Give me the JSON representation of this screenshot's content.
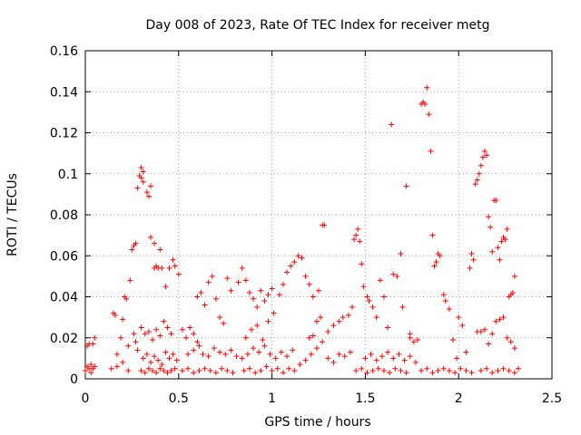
{
  "chart_data": {
    "type": "scatter",
    "title": "Day 008 of 2023, Rate Of TEC Index for receiver metg",
    "xlabel": "GPS time / hours",
    "ylabel": "ROTI / TECUs",
    "xlim": [
      0,
      2.5
    ],
    "ylim": [
      0,
      0.16
    ],
    "xticks": [
      0,
      0.5,
      1,
      1.5,
      2,
      2.5
    ],
    "xtick_labels": [
      "0",
      "0.5",
      "1",
      "1.5",
      "2",
      "2.5"
    ],
    "yticks": [
      0,
      0.02,
      0.04,
      0.06,
      0.08,
      0.1,
      0.12,
      0.14,
      0.16
    ],
    "ytick_labels": [
      "0",
      "0.02",
      "0.04",
      "0.06",
      "0.08",
      "0.1",
      "0.12",
      "0.14",
      "0.16"
    ],
    "grid": true,
    "marker": "+",
    "color": "#ff0000",
    "series": [
      {
        "name": "ROTI",
        "points": [
          [
            0.0,
            0.004
          ],
          [
            0.01,
            0.006
          ],
          [
            0.01,
            0.016
          ],
          [
            0.02,
            0.005
          ],
          [
            0.02,
            0.017
          ],
          [
            0.03,
            0.003
          ],
          [
            0.03,
            0.007
          ],
          [
            0.04,
            0.005
          ],
          [
            0.04,
            0.017
          ],
          [
            0.05,
            0.006
          ],
          [
            0.05,
            0.02
          ],
          [
            0.14,
            0.005
          ],
          [
            0.15,
            0.032
          ],
          [
            0.16,
            0.031
          ],
          [
            0.17,
            0.012
          ],
          [
            0.17,
            0.006
          ],
          [
            0.19,
            0.02
          ],
          [
            0.2,
            0.029
          ],
          [
            0.2,
            0.008
          ],
          [
            0.21,
            0.04
          ],
          [
            0.22,
            0.039
          ],
          [
            0.23,
            0.016
          ],
          [
            0.23,
            0.004
          ],
          [
            0.24,
            0.048
          ],
          [
            0.25,
            0.063
          ],
          [
            0.26,
            0.065
          ],
          [
            0.27,
            0.066
          ],
          [
            0.27,
            0.018
          ],
          [
            0.28,
            0.093
          ],
          [
            0.29,
            0.099
          ],
          [
            0.3,
            0.103
          ],
          [
            0.3,
            0.098
          ],
          [
            0.31,
            0.101
          ],
          [
            0.31,
            0.096
          ],
          [
            0.33,
            0.091
          ],
          [
            0.34,
            0.089
          ],
          [
            0.35,
            0.094
          ],
          [
            0.35,
            0.069
          ],
          [
            0.37,
            0.066
          ],
          [
            0.37,
            0.054
          ],
          [
            0.38,
            0.055
          ],
          [
            0.39,
            0.054
          ],
          [
            0.4,
            0.063
          ],
          [
            0.41,
            0.054
          ],
          [
            0.26,
            0.022
          ],
          [
            0.28,
            0.014
          ],
          [
            0.3,
            0.025
          ],
          [
            0.32,
            0.022
          ],
          [
            0.34,
            0.023
          ],
          [
            0.36,
            0.019
          ],
          [
            0.38,
            0.024
          ],
          [
            0.4,
            0.021
          ],
          [
            0.42,
            0.028
          ],
          [
            0.44,
            0.025
          ],
          [
            0.46,
            0.022
          ],
          [
            0.31,
            0.01
          ],
          [
            0.33,
            0.012
          ],
          [
            0.35,
            0.008
          ],
          [
            0.37,
            0.011
          ],
          [
            0.39,
            0.009
          ],
          [
            0.41,
            0.007
          ],
          [
            0.43,
            0.013
          ],
          [
            0.45,
            0.01
          ],
          [
            0.47,
            0.012
          ],
          [
            0.49,
            0.009
          ],
          [
            0.3,
            0.004
          ],
          [
            0.32,
            0.003
          ],
          [
            0.34,
            0.005
          ],
          [
            0.36,
            0.004
          ],
          [
            0.38,
            0.003
          ],
          [
            0.4,
            0.005
          ],
          [
            0.42,
            0.004
          ],
          [
            0.44,
            0.003
          ],
          [
            0.46,
            0.004
          ],
          [
            0.48,
            0.005
          ],
          [
            0.43,
            0.045
          ],
          [
            0.45,
            0.054
          ],
          [
            0.47,
            0.058
          ],
          [
            0.48,
            0.055
          ],
          [
            0.5,
            0.051
          ],
          [
            0.52,
            0.024
          ],
          [
            0.54,
            0.02
          ],
          [
            0.56,
            0.025
          ],
          [
            0.58,
            0.022
          ],
          [
            0.6,
            0.018
          ],
          [
            0.52,
            0.004
          ],
          [
            0.55,
            0.005
          ],
          [
            0.58,
            0.003
          ],
          [
            0.61,
            0.004
          ],
          [
            0.64,
            0.005
          ],
          [
            0.67,
            0.004
          ],
          [
            0.7,
            0.003
          ],
          [
            0.73,
            0.005
          ],
          [
            0.76,
            0.004
          ],
          [
            0.79,
            0.003
          ],
          [
            0.55,
            0.012
          ],
          [
            0.58,
            0.014
          ],
          [
            0.61,
            0.016
          ],
          [
            0.63,
            0.012
          ],
          [
            0.66,
            0.011
          ],
          [
            0.69,
            0.015
          ],
          [
            0.72,
            0.013
          ],
          [
            0.75,
            0.012
          ],
          [
            0.78,
            0.014
          ],
          [
            0.81,
            0.011
          ],
          [
            0.6,
            0.04
          ],
          [
            0.62,
            0.042
          ],
          [
            0.64,
            0.036
          ],
          [
            0.66,
            0.047
          ],
          [
            0.68,
            0.05
          ],
          [
            0.7,
            0.039
          ],
          [
            0.72,
            0.03
          ],
          [
            0.74,
            0.027
          ],
          [
            0.76,
            0.049
          ],
          [
            0.78,
            0.043
          ],
          [
            0.82,
            0.047
          ],
          [
            0.84,
            0.054
          ],
          [
            0.86,
            0.048
          ],
          [
            0.88,
            0.042
          ],
          [
            0.9,
            0.039
          ],
          [
            0.92,
            0.035
          ],
          [
            0.94,
            0.043
          ],
          [
            0.96,
            0.038
          ],
          [
            0.98,
            0.041
          ],
          [
            1.0,
            0.044
          ],
          [
            0.84,
            0.01
          ],
          [
            0.87,
            0.012
          ],
          [
            0.9,
            0.015
          ],
          [
            0.93,
            0.013
          ],
          [
            0.96,
            0.016
          ],
          [
            0.99,
            0.012
          ],
          [
            1.02,
            0.01
          ],
          [
            1.05,
            0.013
          ],
          [
            1.08,
            0.011
          ],
          [
            1.11,
            0.014
          ],
          [
            0.85,
            0.004
          ],
          [
            0.88,
            0.005
          ],
          [
            0.91,
            0.003
          ],
          [
            0.94,
            0.004
          ],
          [
            0.97,
            0.006
          ],
          [
            1.0,
            0.004
          ],
          [
            1.03,
            0.005
          ],
          [
            1.06,
            0.003
          ],
          [
            1.09,
            0.005
          ],
          [
            1.12,
            0.004
          ],
          [
            0.86,
            0.02
          ],
          [
            0.89,
            0.024
          ],
          [
            0.92,
            0.026
          ],
          [
            0.95,
            0.019
          ],
          [
            0.98,
            0.028
          ],
          [
            1.01,
            0.032
          ],
          [
            1.04,
            0.041
          ],
          [
            1.06,
            0.046
          ],
          [
            1.08,
            0.052
          ],
          [
            1.1,
            0.055
          ],
          [
            1.12,
            0.057
          ],
          [
            1.14,
            0.06
          ],
          [
            1.16,
            0.059
          ],
          [
            1.18,
            0.05
          ],
          [
            1.2,
            0.046
          ],
          [
            1.22,
            0.04
          ],
          [
            1.25,
            0.043
          ],
          [
            1.27,
            0.075
          ],
          [
            1.28,
            0.075
          ],
          [
            1.15,
            0.007
          ],
          [
            1.18,
            0.009
          ],
          [
            1.21,
            0.012
          ],
          [
            1.24,
            0.015
          ],
          [
            1.27,
            0.018
          ],
          [
            1.3,
            0.01
          ],
          [
            1.33,
            0.008
          ],
          [
            1.36,
            0.012
          ],
          [
            1.39,
            0.011
          ],
          [
            1.42,
            0.013
          ],
          [
            1.2,
            0.02
          ],
          [
            1.22,
            0.021
          ],
          [
            1.24,
            0.028
          ],
          [
            1.26,
            0.03
          ],
          [
            1.3,
            0.023
          ],
          [
            1.33,
            0.026
          ],
          [
            1.36,
            0.028
          ],
          [
            1.38,
            0.03
          ],
          [
            1.41,
            0.031
          ],
          [
            1.43,
            0.035
          ],
          [
            1.44,
            0.068
          ],
          [
            1.45,
            0.07
          ],
          [
            1.46,
            0.073
          ],
          [
            1.47,
            0.067
          ],
          [
            1.48,
            0.056
          ],
          [
            1.49,
            0.045
          ],
          [
            1.51,
            0.04
          ],
          [
            1.52,
            0.038
          ],
          [
            1.54,
            0.035
          ],
          [
            1.56,
            0.03
          ],
          [
            1.45,
            0.004
          ],
          [
            1.48,
            0.005
          ],
          [
            1.51,
            0.003
          ],
          [
            1.54,
            0.004
          ],
          [
            1.57,
            0.005
          ],
          [
            1.6,
            0.004
          ],
          [
            1.63,
            0.003
          ],
          [
            1.66,
            0.005
          ],
          [
            1.69,
            0.004
          ],
          [
            1.72,
            0.003
          ],
          [
            1.5,
            0.01
          ],
          [
            1.53,
            0.012
          ],
          [
            1.56,
            0.009
          ],
          [
            1.59,
            0.011
          ],
          [
            1.62,
            0.013
          ],
          [
            1.65,
            0.01
          ],
          [
            1.68,
            0.012
          ],
          [
            1.71,
            0.009
          ],
          [
            1.74,
            0.011
          ],
          [
            1.77,
            0.008
          ],
          [
            1.58,
            0.048
          ],
          [
            1.6,
            0.04
          ],
          [
            1.62,
            0.025
          ],
          [
            1.64,
            0.124
          ],
          [
            1.65,
            0.051
          ],
          [
            1.67,
            0.05
          ],
          [
            1.69,
            0.061
          ],
          [
            1.7,
            0.035
          ],
          [
            1.72,
            0.094
          ],
          [
            1.74,
            0.022
          ],
          [
            1.74,
            0.02
          ],
          [
            1.76,
            0.018
          ],
          [
            1.78,
            0.019
          ],
          [
            1.8,
            0.134
          ],
          [
            1.81,
            0.135
          ],
          [
            1.82,
            0.134
          ],
          [
            1.83,
            0.142
          ],
          [
            1.84,
            0.129
          ],
          [
            1.85,
            0.111
          ],
          [
            1.86,
            0.07
          ],
          [
            1.87,
            0.055
          ],
          [
            1.88,
            0.057
          ],
          [
            1.89,
            0.061
          ],
          [
            1.9,
            0.06
          ],
          [
            1.92,
            0.041
          ],
          [
            1.93,
            0.038
          ],
          [
            1.95,
            0.034
          ],
          [
            1.97,
            0.019
          ],
          [
            1.99,
            0.01
          ],
          [
            1.8,
            0.004
          ],
          [
            1.83,
            0.005
          ],
          [
            1.86,
            0.003
          ],
          [
            1.89,
            0.004
          ],
          [
            1.92,
            0.005
          ],
          [
            1.95,
            0.004
          ],
          [
            1.98,
            0.003
          ],
          [
            2.01,
            0.005
          ],
          [
            2.04,
            0.004
          ],
          [
            2.07,
            0.003
          ],
          [
            2.0,
            0.03
          ],
          [
            2.02,
            0.026
          ],
          [
            2.04,
            0.013
          ],
          [
            2.06,
            0.054
          ],
          [
            2.07,
            0.061
          ],
          [
            2.08,
            0.058
          ],
          [
            2.09,
            0.095
          ],
          [
            2.1,
            0.097
          ],
          [
            2.11,
            0.1
          ],
          [
            2.12,
            0.104
          ],
          [
            2.13,
            0.108
          ],
          [
            2.14,
            0.111
          ],
          [
            2.15,
            0.109
          ],
          [
            2.16,
            0.079
          ],
          [
            2.17,
            0.074
          ],
          [
            2.18,
            0.062
          ],
          [
            2.19,
            0.087
          ],
          [
            2.2,
            0.087
          ],
          [
            2.21,
            0.064
          ],
          [
            2.22,
            0.058
          ],
          [
            2.23,
            0.067
          ],
          [
            2.24,
            0.069
          ],
          [
            2.25,
            0.068
          ],
          [
            2.26,
            0.073
          ],
          [
            2.27,
            0.04
          ],
          [
            2.28,
            0.041
          ],
          [
            2.29,
            0.042
          ],
          [
            2.3,
            0.05
          ],
          [
            2.1,
            0.023
          ],
          [
            2.12,
            0.023
          ],
          [
            2.14,
            0.024
          ],
          [
            2.16,
            0.017
          ],
          [
            2.18,
            0.022
          ],
          [
            2.2,
            0.028
          ],
          [
            2.22,
            0.029
          ],
          [
            2.24,
            0.03
          ],
          [
            2.26,
            0.02
          ],
          [
            2.28,
            0.018
          ],
          [
            2.3,
            0.015
          ],
          [
            2.12,
            0.004
          ],
          [
            2.15,
            0.005
          ],
          [
            2.18,
            0.003
          ],
          [
            2.21,
            0.004
          ],
          [
            2.24,
            0.005
          ],
          [
            2.27,
            0.004
          ],
          [
            2.3,
            0.003
          ],
          [
            2.32,
            0.005
          ]
        ]
      }
    ]
  }
}
